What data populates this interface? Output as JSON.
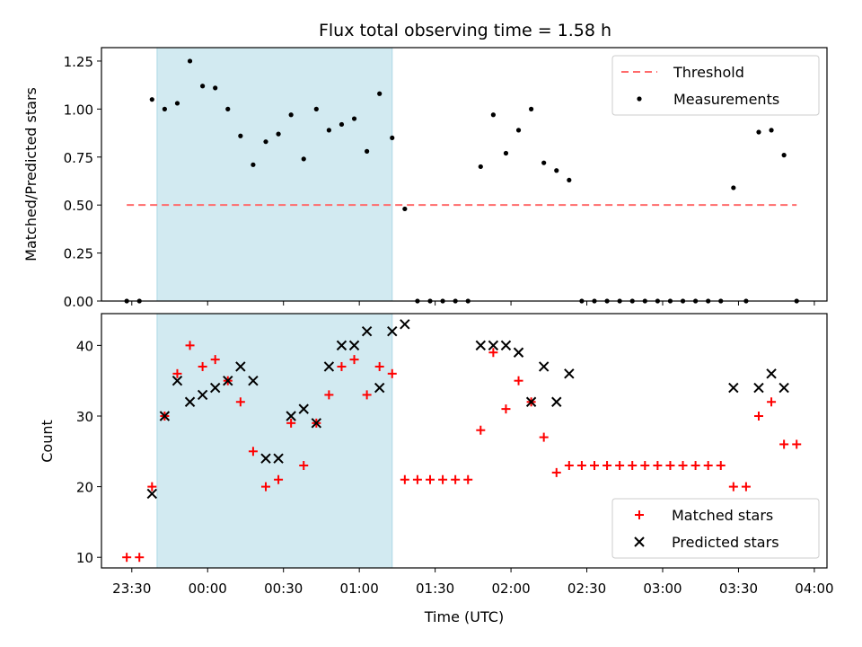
{
  "figure": {
    "title": "Flux total observing time = 1.58 h",
    "shaded_span": {
      "start": "23:40",
      "end": "01:13",
      "color": "#add8e6"
    }
  },
  "chart_data": [
    {
      "type": "scatter",
      "ylabel": "Matched/Predicted stars",
      "xlim": [
        "23:18",
        "04:05"
      ],
      "ylim": [
        0,
        1.32
      ],
      "yticks": [
        "0.00",
        "0.25",
        "0.50",
        "0.75",
        "1.00",
        "1.25"
      ],
      "legend": {
        "position": "top-right"
      },
      "threshold": {
        "name": "Threshold",
        "value": 0.5,
        "x": [
          "23:28",
          "03:53"
        ],
        "color": "#ff6b6b"
      },
      "series": [
        {
          "name": "Measurements",
          "color": "#000000",
          "x": [
            "23:28",
            "23:33",
            "23:38",
            "23:43",
            "23:48",
            "23:53",
            "23:58",
            "00:03",
            "00:08",
            "00:13",
            "00:18",
            "00:23",
            "00:28",
            "00:33",
            "00:38",
            "00:43",
            "00:48",
            "00:53",
            "00:58",
            "01:03",
            "01:08",
            "01:13",
            "01:18",
            "01:23",
            "01:28",
            "01:33",
            "01:38",
            "01:43",
            "01:48",
            "01:53",
            "01:58",
            "02:03",
            "02:08",
            "02:13",
            "02:18",
            "02:23",
            "02:28",
            "02:33",
            "02:38",
            "02:43",
            "02:48",
            "02:53",
            "02:58",
            "03:03",
            "03:08",
            "03:13",
            "03:18",
            "03:23",
            "03:28",
            "03:33",
            "03:38",
            "03:43",
            "03:48",
            "03:53"
          ],
          "y": [
            0,
            0,
            1.05,
            1.0,
            1.03,
            1.25,
            1.12,
            1.11,
            1.0,
            0.86,
            0.71,
            0.83,
            0.87,
            0.97,
            0.74,
            1.0,
            0.89,
            0.92,
            0.95,
            0.78,
            1.08,
            0.85,
            0.48,
            0,
            0,
            0,
            0,
            0,
            0.7,
            0.97,
            0.77,
            0.89,
            1.0,
            0.72,
            0.68,
            0.63,
            0,
            0,
            0,
            0,
            0,
            0,
            0,
            0,
            0,
            0,
            0,
            0,
            0.59,
            0,
            0.88,
            0.89,
            0.76,
            0
          ]
        }
      ]
    },
    {
      "type": "scatter",
      "xlabel": "Time (UTC)",
      "ylabel": "Count",
      "xlim": [
        "23:18",
        "04:05"
      ],
      "ylim": [
        8.5,
        44.5
      ],
      "yticks": [
        "10",
        "20",
        "30",
        "40"
      ],
      "xticks": [
        "23:30",
        "00:00",
        "00:30",
        "01:00",
        "01:30",
        "02:00",
        "02:30",
        "03:00",
        "03:30",
        "04:00"
      ],
      "legend": {
        "position": "bottom-right"
      },
      "series": [
        {
          "name": "Matched stars",
          "marker": "plus",
          "color": "#ff0000",
          "x": [
            "23:28",
            "23:33",
            "23:38",
            "23:43",
            "23:48",
            "23:53",
            "23:58",
            "00:03",
            "00:08",
            "00:13",
            "00:18",
            "00:23",
            "00:28",
            "00:33",
            "00:38",
            "00:43",
            "00:48",
            "00:53",
            "00:58",
            "01:03",
            "01:08",
            "01:13",
            "01:18",
            "01:23",
            "01:28",
            "01:33",
            "01:38",
            "01:43",
            "01:48",
            "01:53",
            "01:58",
            "02:03",
            "02:08",
            "02:13",
            "02:18",
            "02:23",
            "02:28",
            "02:33",
            "02:38",
            "02:43",
            "02:48",
            "02:53",
            "02:58",
            "03:03",
            "03:08",
            "03:13",
            "03:18",
            "03:23",
            "03:28",
            "03:33",
            "03:38",
            "03:43",
            "03:48",
            "03:53"
          ],
          "y": [
            10,
            10,
            20,
            30,
            36,
            40,
            37,
            38,
            35,
            32,
            25,
            20,
            21,
            29,
            23,
            29,
            33,
            37,
            38,
            33,
            37,
            36,
            21,
            21,
            21,
            21,
            21,
            21,
            28,
            39,
            31,
            35,
            32,
            27,
            22,
            23,
            23,
            23,
            23,
            23,
            23,
            23,
            23,
            23,
            23,
            23,
            23,
            23,
            20,
            20,
            30,
            32,
            26,
            26
          ]
        },
        {
          "name": "Predicted stars",
          "marker": "x",
          "color": "#000000",
          "x": [
            "23:38",
            "23:43",
            "23:48",
            "23:53",
            "23:58",
            "00:03",
            "00:08",
            "00:13",
            "00:18",
            "00:23",
            "00:28",
            "00:33",
            "00:38",
            "00:43",
            "00:48",
            "00:53",
            "00:58",
            "01:03",
            "01:08",
            "01:13",
            "01:18",
            "01:48",
            "01:53",
            "01:58",
            "02:03",
            "02:08",
            "02:13",
            "02:18",
            "02:23",
            "03:28",
            "03:38",
            "03:43",
            "03:48"
          ],
          "y": [
            19,
            30,
            35,
            32,
            33,
            34,
            35,
            37,
            35,
            24,
            24,
            30,
            31,
            29,
            37,
            40,
            40,
            42,
            34,
            42,
            43,
            40,
            40,
            40,
            39,
            32,
            37,
            32,
            36,
            34,
            34,
            36,
            34
          ]
        }
      ]
    }
  ]
}
